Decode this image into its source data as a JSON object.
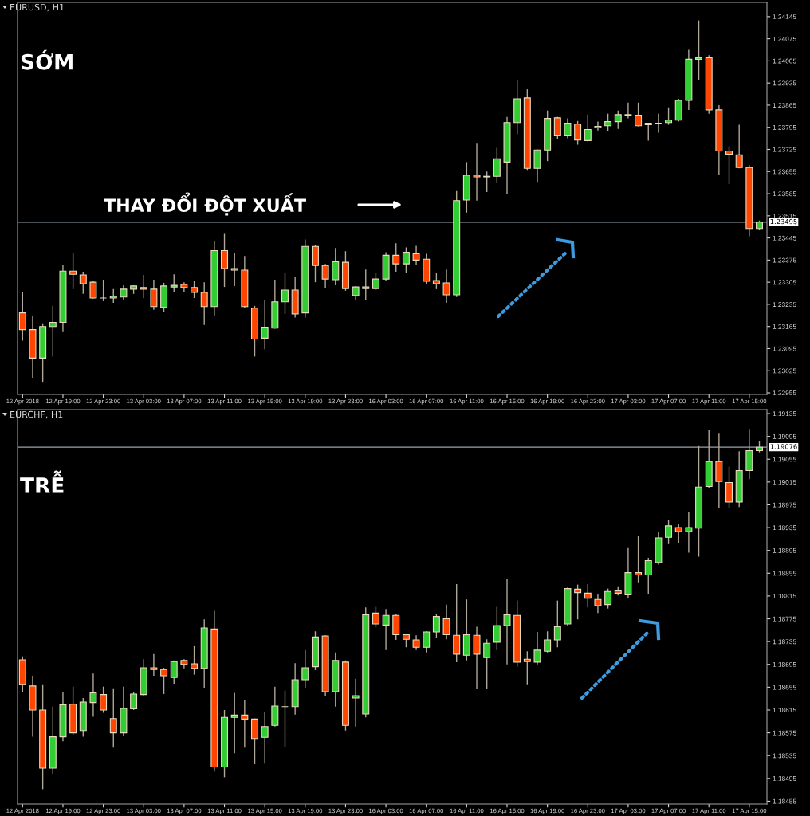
{
  "chart_data": [
    {
      "type": "candlestick",
      "title": "EURUSD, H1",
      "categories": [
        "12 Apr 2018",
        null,
        null,
        null,
        "12 Apr 19:00",
        null,
        null,
        null,
        "12 Apr 23:00",
        null,
        null,
        null,
        "13 Apr 03:00",
        null,
        null,
        null,
        "13 Apr 07:00",
        null,
        null,
        null,
        "13 Apr 11:00",
        null,
        null,
        null,
        "13 Apr 15:00",
        null,
        null,
        null,
        "13 Apr 19:00",
        null,
        null,
        null,
        "13 Apr 23:00",
        null,
        null,
        null,
        "16 Apr 03:00",
        null,
        null,
        null,
        "16 Apr 07:00",
        null,
        null,
        null,
        "16 Apr 11:00",
        null,
        null,
        null,
        "16 Apr 15:00",
        null,
        null,
        null,
        "16 Apr 19:00",
        null,
        null,
        null,
        "16 Apr 23:00",
        null,
        null,
        null,
        "17 Apr 03:00",
        null,
        null,
        null,
        "17 Apr 07:00",
        null,
        null,
        null,
        "17 Apr 11:00",
        null,
        null,
        null,
        "17 Apr 15:00",
        null
      ],
      "ohlc": [
        [
          1.23208,
          1.23275,
          1.2312,
          1.23155
        ],
        [
          1.23155,
          1.23198,
          1.23003,
          1.23065
        ],
        [
          1.23065,
          1.23175,
          1.2299,
          1.23165
        ],
        [
          1.23165,
          1.2323,
          1.2307,
          1.23178
        ],
        [
          1.23178,
          1.2336,
          1.2315,
          1.2334
        ],
        [
          1.2334,
          1.23398,
          1.23283,
          1.2333
        ],
        [
          1.23328,
          1.23338,
          1.23268,
          1.233
        ],
        [
          1.23305,
          1.2331,
          1.23253,
          1.23255
        ],
        [
          1.23255,
          1.23313,
          1.23245,
          1.23255
        ],
        [
          1.23255,
          1.23283,
          1.2324,
          1.2326
        ],
        [
          1.23258,
          1.23295,
          1.23248,
          1.23283
        ],
        [
          1.23283,
          1.23295,
          1.23268,
          1.23293
        ],
        [
          1.23288,
          1.23328,
          1.23255,
          1.23283
        ],
        [
          1.23283,
          1.23313,
          1.23218,
          1.23228
        ],
        [
          1.23225,
          1.23303,
          1.2321,
          1.23293
        ],
        [
          1.2329,
          1.2333,
          1.23273,
          1.23295
        ],
        [
          1.23298,
          1.23305,
          1.23275,
          1.23288
        ],
        [
          1.23288,
          1.23308,
          1.23255,
          1.23273
        ],
        [
          1.23273,
          1.23305,
          1.2317,
          1.23228
        ],
        [
          1.23228,
          1.23435,
          1.232,
          1.23405
        ],
        [
          1.23405,
          1.23458,
          1.2329,
          1.23348
        ],
        [
          1.23348,
          1.23398,
          1.23293,
          1.23343
        ],
        [
          1.23343,
          1.23388,
          1.23223,
          1.23228
        ],
        [
          1.23223,
          1.2323,
          1.2307,
          1.23125
        ],
        [
          1.23128,
          1.23248,
          1.23093,
          1.23163
        ],
        [
          1.2316,
          1.23313,
          1.23158,
          1.23243
        ],
        [
          1.23243,
          1.23333,
          1.23205,
          1.2328
        ],
        [
          1.2328,
          1.23323,
          1.23193,
          1.23205
        ],
        [
          1.23208,
          1.2344,
          1.23193,
          1.23418
        ],
        [
          1.23418,
          1.23423,
          1.23305,
          1.23358
        ],
        [
          1.23358,
          1.23363,
          1.23288,
          1.23315
        ],
        [
          1.23313,
          1.23413,
          1.23295,
          1.2337
        ],
        [
          1.23368,
          1.23403,
          1.23278,
          1.23285
        ],
        [
          1.23263,
          1.23293,
          1.2325,
          1.2329
        ],
        [
          1.2329,
          1.23345,
          1.2325,
          1.23285
        ],
        [
          1.23285,
          1.23335,
          1.2328,
          1.23315
        ],
        [
          1.23315,
          1.234,
          1.2331,
          1.2339
        ],
        [
          1.2339,
          1.23428,
          1.23338,
          1.23363
        ],
        [
          1.23363,
          1.23415,
          1.23335,
          1.234
        ],
        [
          1.23395,
          1.2342,
          1.23358,
          1.23375
        ],
        [
          1.23378,
          1.23395,
          1.233,
          1.23308
        ],
        [
          1.2331,
          1.23333,
          1.23283,
          1.233
        ],
        [
          1.23303,
          1.23345,
          1.2324,
          1.23265
        ],
        [
          1.23265,
          1.23593,
          1.23258,
          1.23563
        ],
        [
          1.23565,
          1.23685,
          1.23525,
          1.23643
        ],
        [
          1.23643,
          1.23743,
          1.23563,
          1.23638
        ],
        [
          1.23638,
          1.23655,
          1.2359,
          1.2364
        ],
        [
          1.2364,
          1.2373,
          1.23618,
          1.23695
        ],
        [
          1.23685,
          1.23828,
          1.23583,
          1.2381
        ],
        [
          1.2381,
          1.23943,
          1.23773,
          1.23885
        ],
        [
          1.23888,
          1.23915,
          1.2366,
          1.23665
        ],
        [
          1.23665,
          1.23725,
          1.2362,
          1.23723
        ],
        [
          1.23723,
          1.23848,
          1.23688,
          1.23823
        ],
        [
          1.23825,
          1.23828,
          1.23758,
          1.23768
        ],
        [
          1.23768,
          1.23823,
          1.2376,
          1.23808
        ],
        [
          1.23805,
          1.23815,
          1.2374,
          1.23755
        ],
        [
          1.23753,
          1.23835,
          1.2375,
          1.23788
        ],
        [
          1.23793,
          1.23813,
          1.23785,
          1.23798
        ],
        [
          1.238,
          1.23838,
          1.23783,
          1.23813
        ],
        [
          1.23813,
          1.23848,
          1.2379,
          1.23835
        ],
        [
          1.23833,
          1.23873,
          1.23823,
          1.23835
        ],
        [
          1.23833,
          1.23873,
          1.23798,
          1.238
        ],
        [
          1.23803,
          1.23808,
          1.23753,
          1.23808
        ],
        [
          1.23808,
          1.23838,
          1.23778,
          1.23808
        ],
        [
          1.2381,
          1.23858,
          1.23803,
          1.23818
        ],
        [
          1.23818,
          1.23885,
          1.23813,
          1.2388
        ],
        [
          1.2388,
          1.2404,
          1.2385,
          1.2401
        ],
        [
          1.2401,
          1.24133,
          1.23945,
          1.24015
        ],
        [
          1.24015,
          1.24023,
          1.23838,
          1.2385
        ],
        [
          1.2385,
          1.23865,
          1.23643,
          1.2372
        ],
        [
          1.2372,
          1.23735,
          1.23615,
          1.2371
        ],
        [
          1.23708,
          1.23803,
          1.23665,
          1.23668
        ],
        [
          1.23668,
          1.23675,
          1.2345,
          1.23475
        ],
        [
          1.23475,
          1.235,
          1.2347,
          1.23495
        ]
      ],
      "ylim": [
        1.2295,
        1.2419
      ],
      "yticks": [
        1.24145,
        1.24075,
        1.24005,
        1.23935,
        1.23865,
        1.23795,
        1.23725,
        1.23655,
        1.23585,
        1.23515,
        1.23445,
        1.23375,
        1.23305,
        1.23235,
        1.23165,
        1.23095,
        1.23025,
        1.22955
      ],
      "ref_lines": [
        {
          "axis": "y",
          "value": 1.23495,
          "label": "1.23495",
          "color": "#9aa4ac"
        }
      ],
      "annotations": [
        "SỚM",
        "THAY ĐỔI ĐỘT XUẤT"
      ]
    },
    {
      "type": "candlestick",
      "title": "EURCHF, H1",
      "categories": [
        "12 Apr 2018",
        null,
        null,
        null,
        "12 Apr 19:00",
        null,
        null,
        null,
        "12 Apr 23:00",
        null,
        null,
        null,
        "13 Apr 03:00",
        null,
        null,
        null,
        "13 Apr 07:00",
        null,
        null,
        null,
        "13 Apr 11:00",
        null,
        null,
        null,
        "13 Apr 15:00",
        null,
        null,
        null,
        "13 Apr 19:00",
        null,
        null,
        null,
        "13 Apr 23:00",
        null,
        null,
        null,
        "16 Apr 03:00",
        null,
        null,
        null,
        "16 Apr 07:00",
        null,
        null,
        null,
        "16 Apr 11:00",
        null,
        null,
        null,
        "16 Apr 15:00",
        null,
        null,
        null,
        "16 Apr 19:00",
        null,
        null,
        null,
        "16 Apr 23:00",
        null,
        null,
        null,
        "17 Apr 03:00",
        null,
        null,
        null,
        "17 Apr 07:00",
        null,
        null,
        null,
        "17 Apr 11:00",
        null,
        null,
        null,
        "17 Apr 15:00",
        null
      ],
      "ohlc": [
        [
          1.18703,
          1.18709,
          1.18646,
          1.1866
        ],
        [
          1.18657,
          1.18675,
          1.18568,
          1.18615
        ],
        [
          1.18615,
          1.1866,
          1.18476,
          1.18513
        ],
        [
          1.18513,
          1.18621,
          1.18503,
          1.18568
        ],
        [
          1.18568,
          1.18647,
          1.1856,
          1.18624
        ],
        [
          1.18625,
          1.18656,
          1.18572,
          1.18575
        ],
        [
          1.18579,
          1.18636,
          1.18568,
          1.18629
        ],
        [
          1.18628,
          1.18679,
          1.18603,
          1.18645
        ],
        [
          1.18642,
          1.18656,
          1.1861,
          1.18615
        ],
        [
          1.186,
          1.18653,
          1.18549,
          1.18575
        ],
        [
          1.18575,
          1.18656,
          1.1857,
          1.18618
        ],
        [
          1.18617,
          1.18647,
          1.18615,
          1.18643
        ],
        [
          1.18642,
          1.18704,
          1.1864,
          1.18689
        ],
        [
          1.18689,
          1.18713,
          1.18675,
          1.18686
        ],
        [
          1.18686,
          1.18689,
          1.18643,
          1.18675
        ],
        [
          1.18672,
          1.18702,
          1.18661,
          1.187
        ],
        [
          1.18702,
          1.18704,
          1.18688,
          1.18695
        ],
        [
          1.18696,
          1.18727,
          1.18677,
          1.18688
        ],
        [
          1.18688,
          1.18774,
          1.18654,
          1.18759
        ],
        [
          1.18757,
          1.18789,
          1.18507,
          1.18515
        ],
        [
          1.18515,
          1.18615,
          1.18497,
          1.18602
        ],
        [
          1.18602,
          1.18645,
          1.18539,
          1.18606
        ],
        [
          1.18606,
          1.18632,
          1.18549,
          1.18599
        ],
        [
          1.18599,
          1.186,
          1.1852,
          1.18565
        ],
        [
          1.18567,
          1.18611,
          1.18521,
          1.18586
        ],
        [
          1.18588,
          1.18656,
          1.18586,
          1.18622
        ],
        [
          1.18621,
          1.18649,
          1.1855,
          1.18621
        ],
        [
          1.18621,
          1.18697,
          1.18607,
          1.18668
        ],
        [
          1.18668,
          1.1872,
          1.18654,
          1.18689
        ],
        [
          1.18691,
          1.18753,
          1.18685,
          1.18743
        ],
        [
          1.18745,
          1.18746,
          1.1864,
          1.18647
        ],
        [
          1.18647,
          1.18716,
          1.18621,
          1.18702
        ],
        [
          1.18699,
          1.18702,
          1.18579,
          1.18588
        ],
        [
          1.18636,
          1.1867,
          1.18586,
          1.1864
        ],
        [
          1.18608,
          1.18795,
          1.18602,
          1.18782
        ],
        [
          1.18785,
          1.18796,
          1.1876,
          1.18766
        ],
        [
          1.18764,
          1.18792,
          1.1872,
          1.18781
        ],
        [
          1.18781,
          1.18784,
          1.18738,
          1.18747
        ],
        [
          1.18747,
          1.18749,
          1.18725,
          1.18739
        ],
        [
          1.18738,
          1.18746,
          1.1872,
          1.18725
        ],
        [
          1.18725,
          1.18753,
          1.18716,
          1.18752
        ],
        [
          1.18752,
          1.18784,
          1.18741,
          1.18779
        ],
        [
          1.18775,
          1.188,
          1.18739,
          1.18747
        ],
        [
          1.18746,
          1.18836,
          1.18699,
          1.18713
        ],
        [
          1.18711,
          1.18809,
          1.18702,
          1.18747
        ],
        [
          1.18746,
          1.18761,
          1.18652,
          1.18713
        ],
        [
          1.18707,
          1.18739,
          1.18652,
          1.18732
        ],
        [
          1.18734,
          1.18796,
          1.1872,
          1.18763
        ],
        [
          1.18763,
          1.18845,
          1.18695,
          1.18782
        ],
        [
          1.18781,
          1.18807,
          1.18691,
          1.18699
        ],
        [
          1.18704,
          1.18718,
          1.1866,
          1.187
        ],
        [
          1.18699,
          1.18752,
          1.18695,
          1.1872
        ],
        [
          1.18718,
          1.18753,
          1.18716,
          1.18738
        ],
        [
          1.18738,
          1.18807,
          1.18725,
          1.18761
        ],
        [
          1.18766,
          1.1883,
          1.18763,
          1.18828
        ],
        [
          1.18827,
          1.18835,
          1.18774,
          1.18821
        ],
        [
          1.1882,
          1.18836,
          1.18795,
          1.18811
        ],
        [
          1.18809,
          1.18818,
          1.18785,
          1.18798
        ],
        [
          1.188,
          1.18828,
          1.18793,
          1.18823
        ],
        [
          1.18824,
          1.18832,
          1.18816,
          1.1882
        ],
        [
          1.18817,
          1.18899,
          1.18811,
          1.18856
        ],
        [
          1.18856,
          1.1892,
          1.18839,
          1.18852
        ],
        [
          1.18852,
          1.18882,
          1.18818,
          1.18877
        ],
        [
          1.18874,
          1.18928,
          1.1887,
          1.18917
        ],
        [
          1.18918,
          1.18949,
          1.18906,
          1.18938
        ],
        [
          1.18935,
          1.18941,
          1.18907,
          1.18928
        ],
        [
          1.18928,
          1.18962,
          1.18891,
          1.18935
        ],
        [
          1.18934,
          1.19078,
          1.18884,
          1.19006
        ],
        [
          1.19007,
          1.19106,
          1.19005,
          1.19051
        ],
        [
          1.19051,
          1.19101,
          1.18969,
          1.19016
        ],
        [
          1.19014,
          1.19042,
          1.18969,
          1.1898
        ],
        [
          1.1898,
          1.19069,
          1.18971,
          1.19035
        ],
        [
          1.19035,
          1.19108,
          1.1902,
          1.1907
        ],
        [
          1.1907,
          1.19087,
          1.19067,
          1.19076
        ]
      ],
      "ylim": [
        1.1845,
        1.19142
      ],
      "yticks": [
        1.19135,
        1.19095,
        1.19055,
        1.19015,
        1.18975,
        1.18935,
        1.18895,
        1.18855,
        1.18815,
        1.18775,
        1.18735,
        1.18695,
        1.18655,
        1.18615,
        1.18575,
        1.18535,
        1.18495,
        1.18455
      ],
      "ref_lines": [
        {
          "axis": "y",
          "value": 1.19076,
          "label": "1.19076",
          "color": "#9aa4ac"
        }
      ],
      "annotations": [
        "TRỄ"
      ]
    }
  ]
}
